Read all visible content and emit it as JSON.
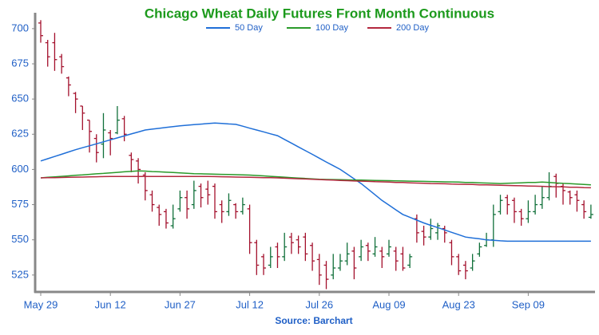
{
  "chart_data": {
    "type": "ohlc",
    "title": "Chicago Wheat Daily Futures Front Month Continuous",
    "source": "Source: Barchart",
    "categories": [
      "May 29",
      null,
      null,
      null,
      null,
      null,
      null,
      null,
      null,
      null,
      "Jun 12",
      null,
      null,
      null,
      null,
      null,
      null,
      null,
      null,
      null,
      "Jun 27",
      null,
      null,
      null,
      null,
      null,
      null,
      null,
      null,
      null,
      "Jul 12",
      null,
      null,
      null,
      null,
      null,
      null,
      null,
      null,
      null,
      "Jul 26",
      null,
      null,
      null,
      null,
      null,
      null,
      null,
      null,
      null,
      "Aug 09",
      null,
      null,
      null,
      null,
      null,
      null,
      null,
      null,
      null,
      "Aug 23",
      null,
      null,
      null,
      null,
      null,
      null,
      null,
      null,
      null,
      "Sep 09",
      null,
      null,
      null,
      null,
      null,
      null,
      null,
      null,
      null
    ],
    "open": [
      704,
      690,
      690,
      680,
      665,
      654,
      645,
      635,
      622,
      618,
      626,
      626,
      636,
      610,
      606,
      596,
      582,
      573,
      570,
      560,
      572,
      580,
      575,
      588,
      586,
      588,
      575,
      570,
      575,
      570,
      572,
      548,
      538,
      532,
      545,
      538,
      552,
      550,
      552,
      546,
      536,
      532,
      525,
      530,
      535,
      542,
      538,
      546,
      540,
      542,
      540,
      542,
      540,
      532,
      565,
      556,
      552,
      555,
      558,
      548,
      538,
      532,
      530,
      540,
      546,
      550,
      570,
      580,
      578,
      570,
      565,
      570,
      575,
      580,
      595,
      588,
      584,
      582,
      575,
      566
    ],
    "high": [
      706,
      692,
      697,
      682,
      666,
      655,
      645,
      635,
      625,
      640,
      628,
      645,
      638,
      612,
      608,
      598,
      585,
      575,
      572,
      575,
      585,
      585,
      592,
      590,
      592,
      590,
      578,
      583,
      576,
      580,
      575,
      550,
      540,
      545,
      548,
      555,
      555,
      553,
      555,
      548,
      540,
      535,
      540,
      540,
      548,
      545,
      550,
      548,
      552,
      545,
      550,
      545,
      545,
      540,
      568,
      560,
      565,
      562,
      560,
      550,
      540,
      535,
      540,
      548,
      555,
      575,
      582,
      582,
      580,
      572,
      578,
      582,
      588,
      598,
      597,
      590,
      585,
      585,
      578,
      575
    ],
    "low": [
      690,
      673,
      670,
      668,
      652,
      640,
      628,
      612,
      605,
      608,
      610,
      625,
      620,
      598,
      590,
      578,
      570,
      560,
      558,
      558,
      570,
      565,
      572,
      573,
      575,
      565,
      562,
      567,
      565,
      568,
      540,
      525,
      525,
      530,
      530,
      535,
      540,
      540,
      535,
      528,
      518,
      515,
      522,
      528,
      532,
      522,
      535,
      535,
      538,
      530,
      538,
      528,
      528,
      530,
      548,
      546,
      550,
      550,
      548,
      532,
      525,
      522,
      528,
      538,
      545,
      545,
      568,
      568,
      562,
      560,
      562,
      568,
      572,
      578,
      580,
      575,
      575,
      570,
      565,
      565
    ],
    "close": [
      695,
      680,
      678,
      673,
      660,
      650,
      640,
      627,
      612,
      628,
      622,
      635,
      625,
      607,
      600,
      585,
      575,
      568,
      562,
      565,
      580,
      572,
      585,
      580,
      582,
      570,
      570,
      578,
      570,
      575,
      548,
      532,
      530,
      538,
      538,
      545,
      548,
      545,
      540,
      535,
      525,
      522,
      530,
      535,
      540,
      530,
      545,
      542,
      545,
      538,
      545,
      535,
      530,
      538,
      555,
      552,
      558,
      560,
      555,
      538,
      528,
      528,
      535,
      545,
      550,
      568,
      578,
      575,
      570,
      565,
      570,
      575,
      580,
      588,
      590,
      585,
      580,
      578,
      570,
      568
    ],
    "up_color": "#11703a",
    "down_color": "#a3102c",
    "series": [
      {
        "name": "50 Day",
        "color": "#1f6fd8",
        "values": [
          606,
          607.6,
          609.2,
          610.8,
          612.4,
          614,
          615.4,
          616.8,
          618.2,
          619.6,
          621,
          622.4,
          623.8,
          625.2,
          626.6,
          628,
          628.6,
          629.2,
          629.8,
          630.4,
          631,
          631.4,
          631.8,
          632.2,
          632.6,
          633,
          632.7,
          632.3,
          632,
          630.7,
          629.3,
          628,
          626.7,
          625.3,
          624,
          621.3,
          618.7,
          616,
          613.3,
          610.7,
          608,
          605.3,
          602.7,
          600,
          596.7,
          593.3,
          590,
          586,
          582,
          578,
          574.7,
          571.3,
          568,
          566,
          564,
          562,
          560.3,
          558.7,
          557,
          555.3,
          553.7,
          552,
          551.3,
          550.7,
          550,
          549.7,
          549.3,
          549,
          549,
          549,
          549,
          549,
          549,
          549,
          549,
          549,
          549,
          549,
          549,
          549
        ]
      },
      {
        "name": "100 Day",
        "color": "#2a9a2a",
        "values": [
          594,
          594.4,
          594.7,
          595.1,
          595.4,
          595.8,
          596.1,
          596.5,
          596.9,
          597.2,
          597.6,
          597.9,
          598.3,
          598.6,
          599,
          598.8,
          598.5,
          598.3,
          598,
          597.8,
          597.5,
          597.3,
          597,
          596.9,
          596.8,
          596.6,
          596.5,
          596.4,
          596.3,
          596.1,
          596,
          595.7,
          595.4,
          595.1,
          594.8,
          594.5,
          594.2,
          593.9,
          593.6,
          593.3,
          593,
          592.9,
          592.8,
          592.7,
          592.6,
          592.5,
          592.4,
          592.3,
          592.2,
          592.1,
          592,
          591.9,
          591.8,
          591.7,
          591.6,
          591.5,
          591.4,
          591.3,
          591.2,
          591.1,
          591,
          590.8,
          590.7,
          590.5,
          590.3,
          590.2,
          590,
          590.2,
          590.3,
          590.5,
          590.7,
          590.8,
          591,
          590.7,
          590.4,
          590.1,
          589.9,
          589.6,
          589.3,
          589
        ]
      },
      {
        "name": "200 Day",
        "color": "#b3283e",
        "values": [
          594,
          594.1,
          594.2,
          594.3,
          594.4,
          594.5,
          594.6,
          594.7,
          594.8,
          594.9,
          595,
          595,
          595,
          595,
          595,
          595,
          595,
          595,
          595,
          595,
          595,
          595,
          595,
          595,
          595,
          594.9,
          594.8,
          594.7,
          594.6,
          594.5,
          594.4,
          594.3,
          594.2,
          594.1,
          594,
          593.8,
          593.6,
          593.4,
          593.2,
          593,
          592.8,
          592.6,
          592.4,
          592.2,
          592,
          591.8,
          591.7,
          591.5,
          591.3,
          591.2,
          591,
          590.8,
          590.7,
          590.5,
          590.3,
          590.2,
          590,
          589.9,
          589.8,
          589.6,
          589.5,
          589.4,
          589.3,
          589.1,
          589,
          588.9,
          588.8,
          588.6,
          588.5,
          588.4,
          588.2,
          588.1,
          588,
          587.8,
          587.7,
          587.6,
          587.4,
          587.3,
          587.1,
          587
        ]
      }
    ],
    "ylim": [
      513,
      709
    ],
    "yticks": [
      525,
      550,
      575,
      600,
      625,
      650,
      675,
      700
    ]
  }
}
